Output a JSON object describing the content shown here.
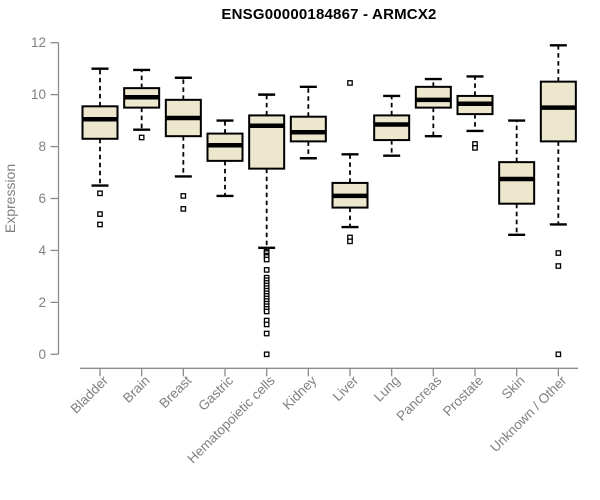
{
  "chart_data": {
    "type": "boxplot",
    "title": "ENSG00000184867 - ARMCX2",
    "ylabel": "Expression",
    "xlabel": "",
    "ylim": [
      0,
      12
    ],
    "yticks": [
      0,
      2,
      4,
      6,
      8,
      10,
      12
    ],
    "grid": false,
    "legend": null,
    "categories": [
      "Bladder",
      "Brain",
      "Breast",
      "Gastric",
      "Hematopoietic cells",
      "Kidney",
      "Liver",
      "Lung",
      "Pancreas",
      "Prostate",
      "Skin",
      "Unknown / Other"
    ],
    "boxes": [
      {
        "category": "Bladder",
        "whisker_low": 6.5,
        "q1": 8.3,
        "median": 9.05,
        "q3": 9.55,
        "whisker_high": 11.0,
        "outliers": [
          6.2,
          5.4,
          5.0
        ]
      },
      {
        "category": "Brain",
        "whisker_low": 8.65,
        "q1": 9.5,
        "median": 9.9,
        "q3": 10.25,
        "whisker_high": 10.95,
        "outliers": [
          8.35
        ]
      },
      {
        "category": "Breast",
        "whisker_low": 6.85,
        "q1": 8.4,
        "median": 9.1,
        "q3": 9.8,
        "whisker_high": 10.65,
        "outliers": [
          6.1,
          5.6
        ]
      },
      {
        "category": "Gastric",
        "whisker_low": 6.1,
        "q1": 7.45,
        "median": 8.05,
        "q3": 8.5,
        "whisker_high": 9.0,
        "outliers": []
      },
      {
        "category": "Hematopoietic cells",
        "whisker_low": 4.1,
        "q1": 7.15,
        "median": 8.8,
        "q3": 9.2,
        "whisker_high": 10.0,
        "outliers": [
          4.0,
          3.95,
          3.9,
          3.8,
          3.75,
          3.65,
          3.25,
          2.95,
          2.85,
          2.75,
          2.65,
          2.55,
          2.45,
          2.35,
          2.25,
          2.15,
          2.05,
          1.95,
          1.85,
          1.75,
          1.65,
          1.3,
          1.15,
          0.8,
          0.0
        ]
      },
      {
        "category": "Kidney",
        "whisker_low": 7.55,
        "q1": 8.2,
        "median": 8.55,
        "q3": 9.15,
        "whisker_high": 10.3,
        "outliers": []
      },
      {
        "category": "Liver",
        "whisker_low": 4.9,
        "q1": 5.65,
        "median": 6.1,
        "q3": 6.6,
        "whisker_high": 7.7,
        "outliers": [
          10.45,
          4.5,
          4.35
        ]
      },
      {
        "category": "Lung",
        "whisker_low": 7.65,
        "q1": 8.25,
        "median": 8.85,
        "q3": 9.2,
        "whisker_high": 9.95,
        "outliers": []
      },
      {
        "category": "Pancreas",
        "whisker_low": 8.4,
        "q1": 9.5,
        "median": 9.8,
        "q3": 10.3,
        "whisker_high": 10.6,
        "outliers": []
      },
      {
        "category": "Prostate",
        "whisker_low": 8.6,
        "q1": 9.25,
        "median": 9.65,
        "q3": 9.95,
        "whisker_high": 10.7,
        "outliers": [
          8.1,
          7.95
        ]
      },
      {
        "category": "Skin",
        "whisker_low": 4.6,
        "q1": 5.8,
        "median": 6.75,
        "q3": 7.4,
        "whisker_high": 9.0,
        "outliers": []
      },
      {
        "category": "Unknown / Other",
        "whisker_low": 5.0,
        "q1": 8.2,
        "median": 9.5,
        "q3": 10.5,
        "whisker_high": 11.9,
        "outliers": [
          3.9,
          3.4,
          0.0
        ]
      }
    ],
    "style": {
      "box_fill": "#EDE8CD",
      "box_stroke": "#000000",
      "axis_color": "#8C8C8C",
      "label_color": "#808080",
      "title_color": "#000000",
      "background": "#FFFFFF"
    }
  }
}
